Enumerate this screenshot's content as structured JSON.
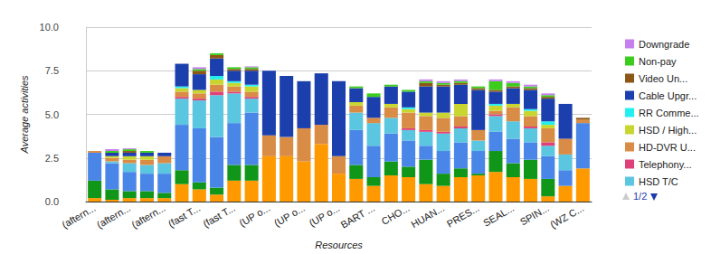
{
  "chart_data": {
    "type": "bar",
    "stacked": true,
    "x_label": "Resources",
    "y_label": "Average activities",
    "categories": [
      "(aftern...",
      null,
      "(aftern...",
      null,
      "(aftern...",
      null,
      "(fast T...",
      null,
      "(fast T...",
      null,
      "(UP o...",
      null,
      "(UP o...",
      null,
      "(UP o...",
      null,
      "BART ...",
      null,
      "CHO...",
      null,
      "HUAN...",
      null,
      "PRES...",
      null,
      "SEAL...",
      null,
      "SPIN...",
      null,
      "(WZ C..."
    ],
    "ylim": [
      0,
      10
    ],
    "yticks": [
      {
        "value": 0,
        "label": "0.0"
      },
      2.5,
      {
        "value": 5,
        "label": "5.0"
      },
      7.5,
      {
        "value": 10,
        "label": "10.0"
      }
    ],
    "grid": true,
    "legend": "right",
    "annotations": [
      "1/2"
    ],
    "series": [
      {
        "color": "#ff9900",
        "values": [
          0.2,
          0.1,
          0.2,
          0.2,
          0.2,
          1.0,
          0.7,
          0.4,
          1.2,
          1.2,
          2.6,
          2.6,
          2.3,
          3.3,
          1.6,
          1.3,
          0.9,
          1.5,
          1.4,
          1.0,
          0.9,
          1.4,
          1.5,
          1.7,
          1.4,
          1.3,
          0.3,
          0.9,
          1.9
        ]
      },
      {
        "color": "#109618",
        "values": [
          1.0,
          0.6,
          0.4,
          0.4,
          0.3,
          0.8,
          0.4,
          0.4,
          0.9,
          0.9,
          0,
          0,
          0,
          0,
          0,
          0.8,
          0.5,
          0.8,
          0.6,
          1.4,
          0.7,
          0.5,
          0.1,
          1.2,
          0.8,
          1.1,
          1.0,
          0,
          0
        ]
      },
      {
        "color": "#4a86e8",
        "values": [
          1.6,
          1.5,
          1.1,
          1.0,
          1.1,
          2.6,
          3.1,
          2.9,
          2.4,
          3.0,
          0,
          0,
          0,
          0,
          0,
          2.0,
          1.8,
          1.6,
          1.5,
          0.8,
          1.3,
          1.5,
          1.3,
          1.1,
          1.4,
          1.0,
          1.3,
          0.9,
          2.6
        ]
      },
      {
        "name": "HSD T/C",
        "color": "#5bc6e0",
        "values": [
          0,
          0.1,
          0.5,
          0.5,
          0.6,
          1.5,
          1.6,
          2.4,
          1.7,
          0.8,
          0,
          0,
          0,
          0,
          0,
          1.0,
          1.3,
          0.9,
          0.6,
          0.8,
          1.0,
          0.8,
          0.6,
          0.9,
          1.0,
          0.8,
          0.6,
          0.9,
          0
        ]
      },
      {
        "name": "Telephony...",
        "color": "#e0407a",
        "values": [
          0,
          0,
          0,
          0,
          0,
          0.1,
          0.1,
          0.2,
          0.1,
          0.1,
          0,
          0,
          0,
          0,
          0,
          0,
          0,
          0,
          0.1,
          0.1,
          0.1,
          0.1,
          0,
          0.1,
          0,
          0.1,
          0.2,
          0,
          0
        ]
      },
      {
        "name": "HD-DVR U...",
        "color": "#d98c45",
        "values": [
          0.1,
          0.2,
          0.2,
          0.3,
          0.4,
          0.3,
          0.3,
          0.4,
          0.3,
          0.3,
          1.2,
          1.1,
          1.9,
          1.1,
          1.0,
          0.4,
          0.3,
          0.6,
          0.9,
          0.8,
          0.8,
          0.6,
          0.6,
          0.2,
          0.8,
          0.6,
          0.8,
          0.9,
          0.2
        ]
      },
      {
        "name": "HSD / High...",
        "color": "#c9d630",
        "values": [
          0,
          0.1,
          0.2,
          0.2,
          0,
          0.2,
          0.2,
          0.3,
          0.2,
          0.3,
          0,
          0,
          0,
          0,
          0,
          0.2,
          0,
          0.2,
          0.2,
          0.2,
          0.3,
          0.7,
          0,
          0.3,
          0.2,
          0.3,
          0.2,
          0,
          0
        ]
      },
      {
        "name": "RR Comme...",
        "color": "#22f0f0",
        "values": [
          0,
          0,
          0,
          0,
          0,
          0.1,
          0,
          0.2,
          0.1,
          0.1,
          0,
          0,
          0,
          0,
          0,
          0,
          0,
          0,
          0.1,
          0,
          0,
          0,
          0,
          0.1,
          0,
          0.1,
          0.2,
          0,
          0
        ]
      },
      {
        "name": "Cable Upgr...",
        "color": "#1c3fae",
        "values": [
          0,
          0.2,
          0.2,
          0.2,
          0.2,
          1.3,
          0.9,
          1.0,
          0.6,
          0.8,
          3.7,
          3.5,
          2.7,
          2.95,
          4.3,
          0.8,
          1.2,
          1.0,
          0.9,
          1.5,
          1.5,
          1.1,
          2.3,
          0.7,
          0.9,
          1.1,
          1.3,
          2.0,
          0
        ]
      },
      {
        "name": "Video Un...",
        "color": "#8b5716",
        "values": [
          0,
          0,
          0.1,
          0,
          0,
          0,
          0.2,
          0.2,
          0.1,
          0.1,
          0,
          0,
          0,
          0,
          0,
          0,
          0,
          0,
          0,
          0.2,
          0.1,
          0.1,
          0.1,
          0.1,
          0.1,
          0.1,
          0.1,
          0,
          0.1
        ]
      },
      {
        "name": "Non-pay",
        "color": "#3ccc1e",
        "values": [
          0,
          0.1,
          0.1,
          0.1,
          0,
          0,
          0.1,
          0.1,
          0.1,
          0.1,
          0,
          0,
          0,
          0,
          0,
          0.1,
          0.2,
          0.1,
          0.1,
          0.1,
          0.1,
          0.1,
          0.1,
          0.5,
          0.2,
          0.1,
          0.1,
          0,
          0
        ]
      },
      {
        "name": "Downgrade",
        "color": "#c77fef",
        "values": [
          0,
          0.1,
          0.05,
          0,
          0,
          0,
          0.1,
          0,
          0,
          0.05,
          0,
          0,
          0,
          0,
          0,
          0,
          0,
          0,
          0,
          0.1,
          0.1,
          0.1,
          0,
          0.1,
          0.1,
          0.1,
          0.1,
          0,
          0
        ]
      }
    ]
  }
}
